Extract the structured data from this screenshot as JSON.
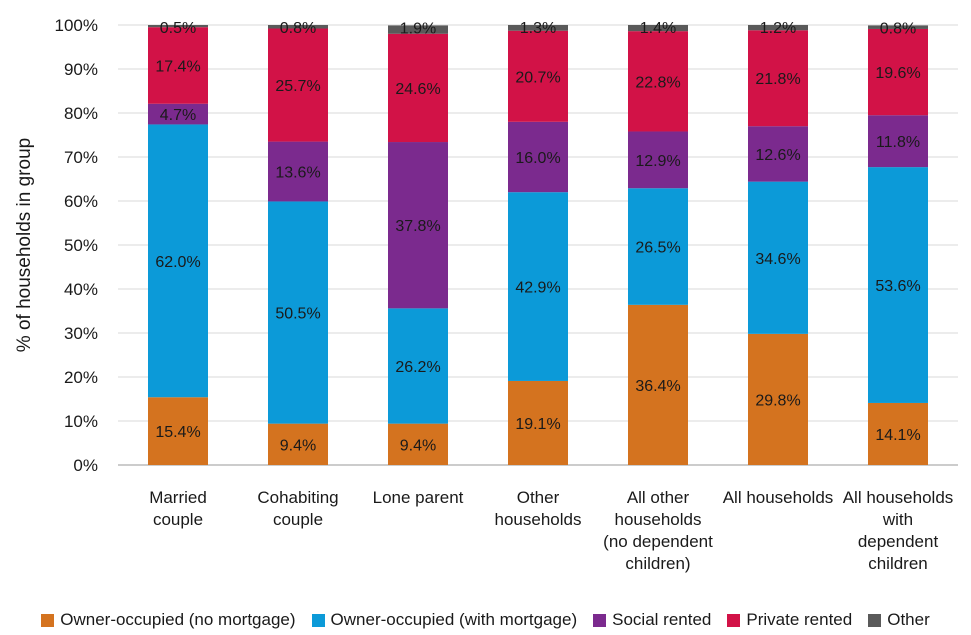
{
  "chart_data": {
    "type": "bar",
    "stacked": true,
    "ylabel": "% of households in group",
    "xlabel": "",
    "ylim": [
      0,
      100
    ],
    "yticks": [
      "0%",
      "10%",
      "20%",
      "30%",
      "40%",
      "50%",
      "60%",
      "70%",
      "80%",
      "90%",
      "100%"
    ],
    "grid": true,
    "legend_position": "bottom",
    "categories": [
      [
        "Married",
        "couple"
      ],
      [
        "Cohabiting",
        "couple"
      ],
      [
        "Lone parent"
      ],
      [
        "Other",
        "households"
      ],
      [
        "All other",
        "households",
        "(no dependent",
        "children)"
      ],
      [
        "All households"
      ],
      [
        "All households",
        "with",
        "dependent",
        "children"
      ]
    ],
    "series": [
      {
        "name": "Owner-occupied (no mortgage)",
        "color": "#d4731f",
        "values": [
          15.4,
          9.4,
          9.4,
          19.1,
          36.4,
          29.8,
          14.1
        ],
        "labels": [
          "15.4%",
          "9.4%",
          "9.4%",
          "19.1%",
          "36.4%",
          "29.8%",
          "14.1%"
        ]
      },
      {
        "name": "Owner-occupied (with mortgage)",
        "color": "#0c9ad8",
        "values": [
          62.0,
          50.5,
          26.2,
          42.9,
          26.5,
          34.6,
          53.6
        ],
        "labels": [
          "62.0%",
          "50.5%",
          "26.2%",
          "42.9%",
          "26.5%",
          "34.6%",
          "53.6%"
        ]
      },
      {
        "name": "Social rented",
        "color": "#7b2a8e",
        "values": [
          4.7,
          13.6,
          37.8,
          16.0,
          12.9,
          12.6,
          11.8
        ],
        "labels": [
          "4.7%",
          "13.6%",
          "37.8%",
          "16.0%",
          "12.9%",
          "12.6%",
          "11.8%"
        ]
      },
      {
        "name": "Private rented",
        "color": "#d21247",
        "values": [
          17.4,
          25.7,
          24.6,
          20.7,
          22.8,
          21.8,
          19.6
        ],
        "labels": [
          "17.4%",
          "25.7%",
          "24.6%",
          "20.7%",
          "22.8%",
          "21.8%",
          "19.6%"
        ]
      },
      {
        "name": "Other",
        "color": "#5a5a5a",
        "values": [
          0.5,
          0.8,
          1.9,
          1.3,
          1.4,
          1.2,
          0.8
        ],
        "labels": [
          "0.5%",
          "0.8%",
          "1.9%",
          "1.3%",
          "1.4%",
          "1.2%",
          "0.8%"
        ]
      }
    ]
  }
}
